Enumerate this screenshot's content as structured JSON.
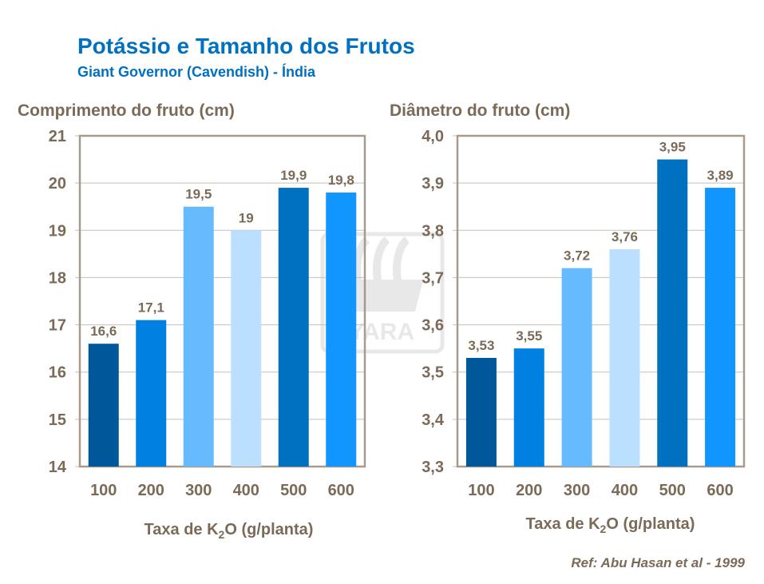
{
  "title": "Potássio e Tamanho dos Frutos",
  "subtitle": "Giant Governor (Cavendish) - Índia",
  "reference": "Ref: Abu Hasan et al - 1999",
  "colors": {
    "text": "#7b6a58",
    "title": "#0070c0",
    "bars": [
      "#00589b",
      "#0080e0",
      "#66bbff",
      "#bbdfff",
      "#0070c0",
      "#1196ff"
    ]
  },
  "chart_data": [
    {
      "type": "bar",
      "title": "Comprimento do fruto (cm)",
      "xlabel": "Taxa de K2O (g/planta)",
      "categories": [
        "100",
        "200",
        "300",
        "400",
        "500",
        "600"
      ],
      "values": [
        16.6,
        17.1,
        19.5,
        19,
        19.9,
        19.8
      ],
      "data_labels": [
        "16,6",
        "17,1",
        "19,5",
        "19",
        "19,9",
        "19,8"
      ],
      "ylim": [
        14,
        21
      ],
      "yticks": [
        "14",
        "15",
        "16",
        "17",
        "18",
        "19",
        "20",
        "21"
      ],
      "grid": true
    },
    {
      "type": "bar",
      "title": "Diâmetro do fruto (cm)",
      "xlabel": "Taxa de K2O (g/planta)",
      "categories": [
        "100",
        "200",
        "300",
        "400",
        "500",
        "600"
      ],
      "values": [
        3.53,
        3.55,
        3.72,
        3.76,
        3.95,
        3.89
      ],
      "data_labels": [
        "3,53",
        "3,55",
        "3,72",
        "3,76",
        "3,95",
        "3,89"
      ],
      "ylim": [
        3.3,
        4.0
      ],
      "yticks": [
        "3,3",
        "3,4",
        "3,5",
        "3,6",
        "3,7",
        "3,8",
        "3,9",
        "4,0"
      ],
      "grid": true
    }
  ],
  "watermark": "YARA"
}
